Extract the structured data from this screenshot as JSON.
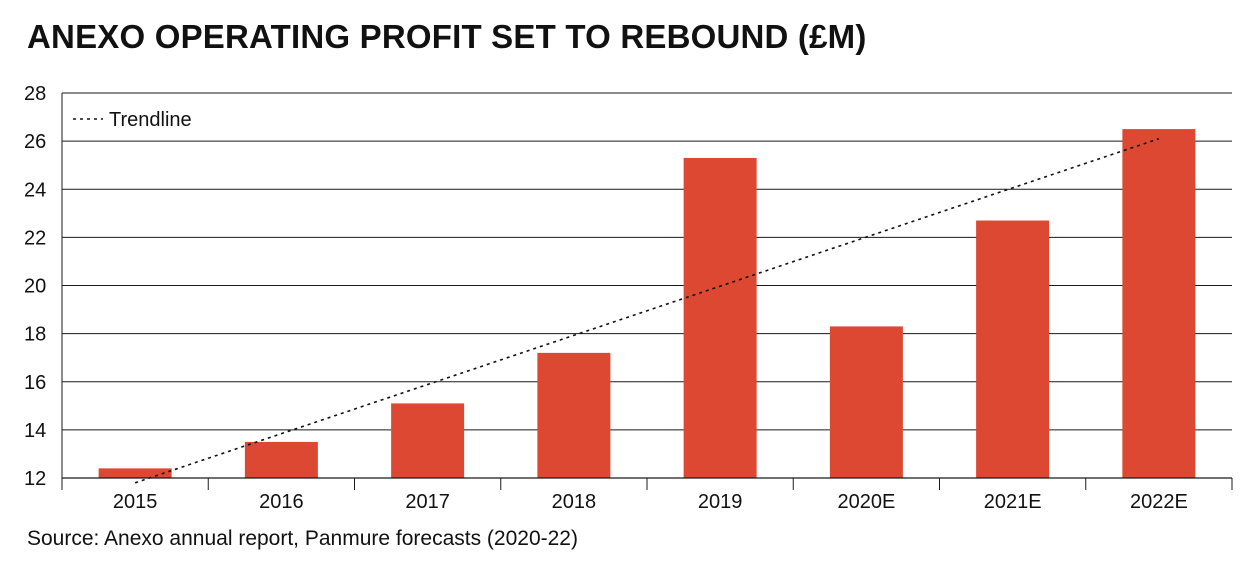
{
  "chart_data": {
    "type": "bar",
    "title": "ANEXO OPERATING PROFIT SET TO REBOUND (£M)",
    "categories": [
      "2015",
      "2016",
      "2017",
      "2018",
      "2019",
      "2020E",
      "2021E",
      "2022E"
    ],
    "values": [
      12.4,
      13.5,
      15.1,
      17.2,
      25.3,
      18.3,
      22.7,
      26.5
    ],
    "ylim": [
      12,
      28
    ],
    "yticks": [
      "12",
      "14",
      "16",
      "18",
      "20",
      "22",
      "24",
      "26",
      "28"
    ],
    "xlabel": "",
    "ylabel": "",
    "grid": true,
    "legend": {
      "position": "top-left",
      "entries": [
        "Trendline"
      ]
    },
    "trendline": {
      "start": 11.8,
      "end": 26.1
    },
    "bar_color": "#dc4832",
    "source": "Source: Anexo annual report, Panmure forecasts (2020-22)"
  }
}
